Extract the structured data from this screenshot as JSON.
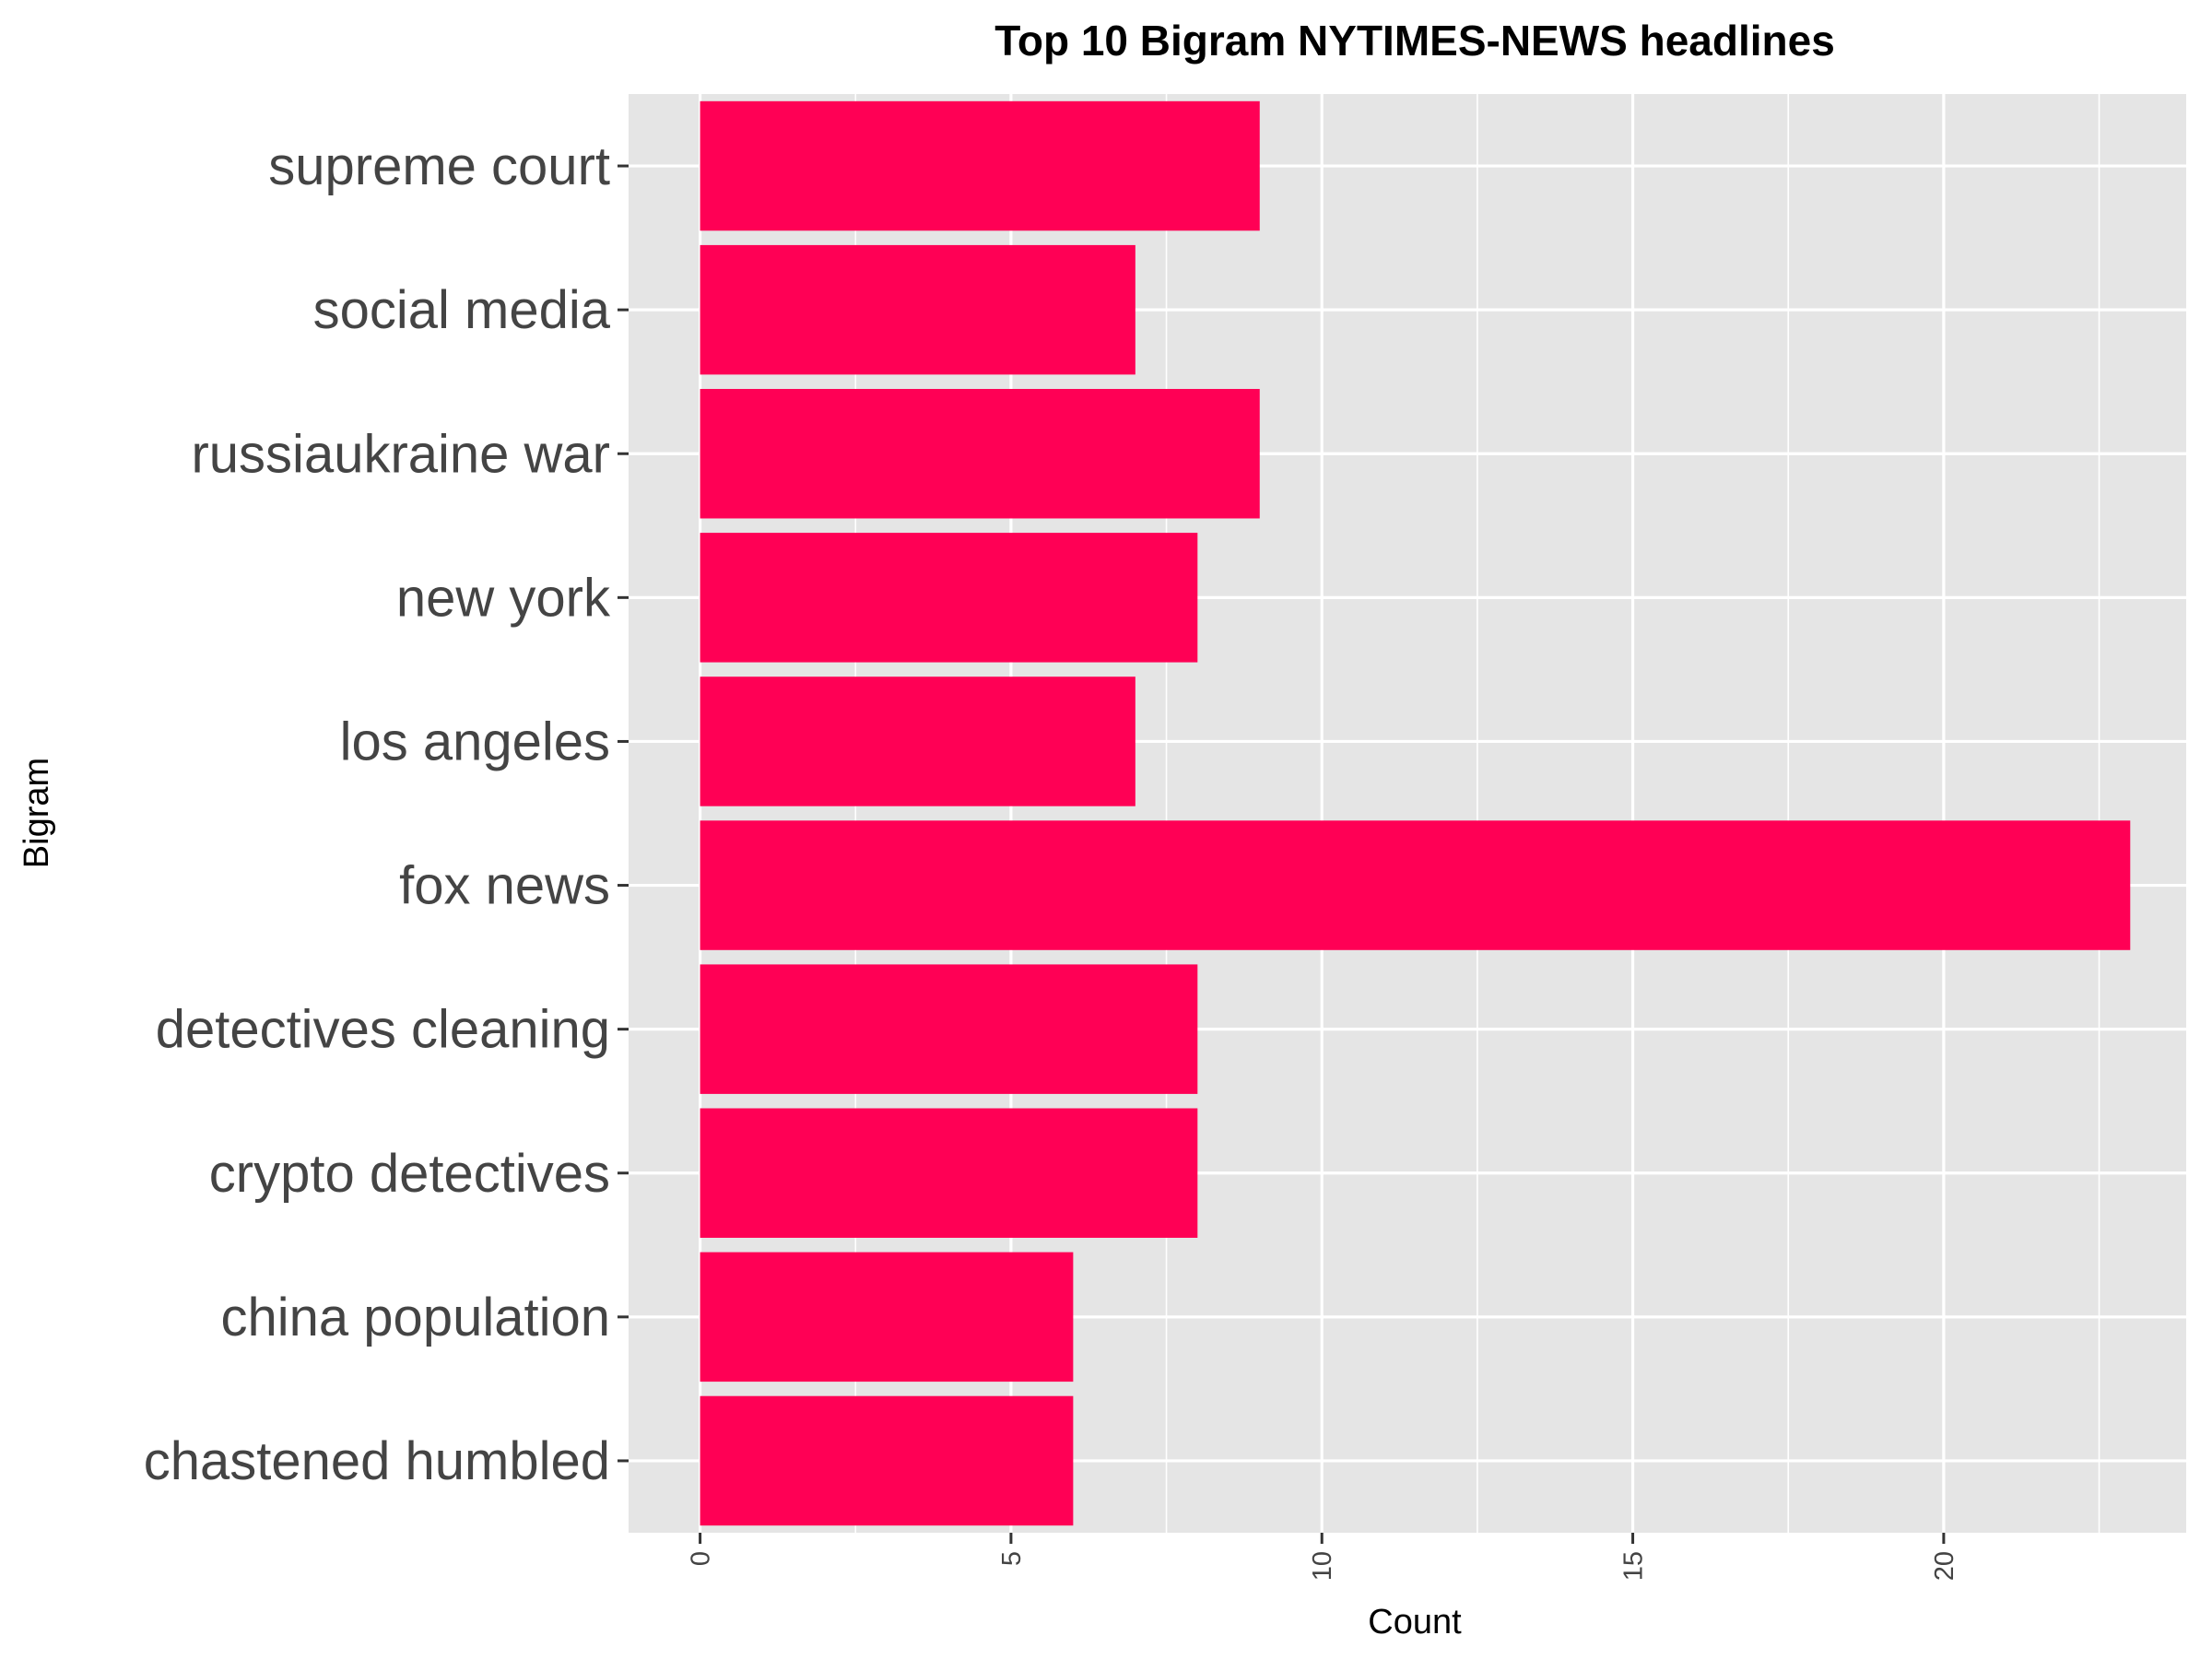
{
  "chart_data": {
    "type": "bar",
    "orientation": "horizontal",
    "title": "Top 10 Bigram NYTIMES-NEWS headlines",
    "xlabel": "Count",
    "ylabel": "Bigram",
    "categories": [
      "supreme court",
      "social media",
      "russiaukraine war",
      "new york",
      "los angeles",
      "fox news",
      "detectives cleaning",
      "crypto detectives",
      "china population",
      "chastened humbled"
    ],
    "values": [
      9,
      7,
      9,
      8,
      7,
      23,
      8,
      8,
      6,
      6
    ],
    "xlim": [
      -1.15,
      23.9
    ],
    "xticks": [
      0,
      5,
      10,
      15,
      20
    ],
    "grid": true,
    "bar_color": "#FF0055",
    "panel_color": "#E5E5E5",
    "grid_color": "#FFFFFF"
  }
}
